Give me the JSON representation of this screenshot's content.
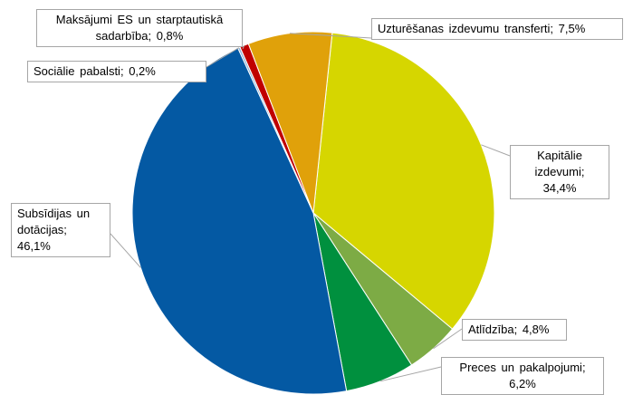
{
  "chart_data": {
    "type": "pie",
    "categories": [
      "Kapitālie izdevumi;",
      "Atlīdzība;",
      "Preces un pakalpojumi;",
      "Subsīdijas un dotācijas;",
      "Sociālie pabalsti;",
      "Maksājumi ES un starptautiskā sadarbība;",
      "Uzturēšanas izdevumu transferti;"
    ],
    "values": [
      34.4,
      4.8,
      6.2,
      46.1,
      0.2,
      0.8,
      7.5
    ],
    "value_labels": [
      "34,4%",
      "4,8%",
      "6,2%",
      "46,1%",
      "0,2%",
      "0,8%",
      "7,5%"
    ],
    "colors": [
      "#d6d600",
      "#7dab45",
      "#00903e",
      "#0459a3",
      "#8fb6dc",
      "#c00000",
      "#e0a10a"
    ]
  }
}
